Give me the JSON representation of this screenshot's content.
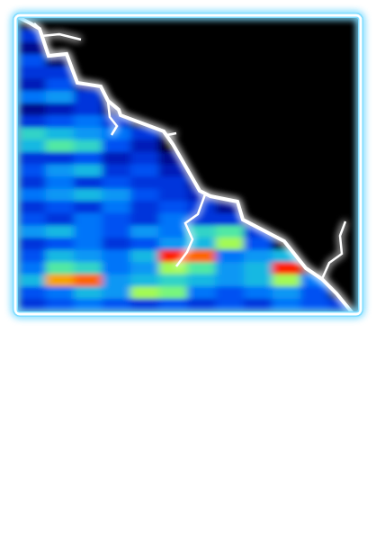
{
  "chart_data": {
    "type": "heatmap",
    "tick_labels": false,
    "cells": [
      [
        0,
        0,
        0,
        0,
        0,
        0,
        0,
        0,
        0,
        0,
        0,
        0
      ],
      [
        0.3,
        0,
        0,
        0,
        0,
        0,
        0,
        0,
        0,
        0,
        0,
        0
      ],
      [
        0.2,
        0,
        0,
        0,
        0,
        0,
        0,
        0,
        0,
        0,
        0,
        0
      ],
      [
        0.35,
        0.15,
        0,
        0,
        0,
        0,
        0,
        0,
        0,
        0,
        0,
        0
      ],
      [
        0.3,
        0.3,
        0,
        0,
        0,
        0,
        0,
        0,
        0,
        0,
        0,
        0
      ],
      [
        0.25,
        0.35,
        0.2,
        0,
        0,
        0,
        0,
        0,
        0,
        0,
        0,
        0
      ],
      [
        0.4,
        0.45,
        0.3,
        0,
        0,
        0,
        0,
        0,
        0,
        0,
        0,
        0
      ],
      [
        0.2,
        0.25,
        0.3,
        0.15,
        0,
        0,
        0,
        0,
        0,
        0,
        0,
        0
      ],
      [
        0.3,
        0.35,
        0.4,
        0.3,
        0,
        0,
        0,
        0,
        0,
        0,
        0,
        0
      ],
      [
        0.55,
        0.5,
        0.45,
        0.4,
        0.3,
        0,
        0,
        0,
        0,
        0,
        0,
        0
      ],
      [
        0.5,
        0.6,
        0.55,
        0.35,
        0.25,
        0,
        0,
        0,
        0,
        0,
        0,
        0
      ],
      [
        0.3,
        0.3,
        0.35,
        0.25,
        0.3,
        0.2,
        0,
        0,
        0,
        0,
        0,
        0
      ],
      [
        0.35,
        0.45,
        0.5,
        0.3,
        0.35,
        0.25,
        0,
        0,
        0,
        0,
        0,
        0
      ],
      [
        0.3,
        0.4,
        0.3,
        0.35,
        0.3,
        0.3,
        0.2,
        0,
        0,
        0,
        0,
        0
      ],
      [
        0.4,
        0.45,
        0.5,
        0.45,
        0.35,
        0.3,
        0.25,
        0,
        0,
        0,
        0,
        0
      ],
      [
        0.3,
        0.35,
        0.3,
        0.4,
        0.3,
        0.35,
        0.3,
        0.2,
        0,
        0,
        0,
        0
      ],
      [
        0.35,
        0.3,
        0.4,
        0.35,
        0.3,
        0.4,
        0.3,
        0.3,
        0,
        0,
        0,
        0
      ],
      [
        0.45,
        0.5,
        0.4,
        0.35,
        0.45,
        0.4,
        0.55,
        0.6,
        0.3,
        0,
        0,
        0
      ],
      [
        0.3,
        0.35,
        0.4,
        0.3,
        0.35,
        0.45,
        0.5,
        0.7,
        0.35,
        0,
        0,
        0
      ],
      [
        0.35,
        0.5,
        0.45,
        0.4,
        0.5,
        0.95,
        0.9,
        0.4,
        0.45,
        0.5,
        0,
        0
      ],
      [
        0.4,
        0.6,
        0.55,
        0.4,
        0.45,
        0.7,
        0.6,
        0.45,
        0.5,
        0.95,
        0,
        0
      ],
      [
        0.5,
        0.85,
        0.9,
        0.45,
        0.5,
        0.55,
        0.5,
        0.45,
        0.5,
        0.7,
        0.4,
        0
      ],
      [
        0.35,
        0.4,
        0.5,
        0.45,
        0.7,
        0.65,
        0.4,
        0.35,
        0.4,
        0.45,
        0.35,
        0
      ],
      [
        0.3,
        0.35,
        0.4,
        0.35,
        0.3,
        0.35,
        0.3,
        0.35,
        0.3,
        0.4,
        0.35,
        0.3
      ]
    ]
  }
}
